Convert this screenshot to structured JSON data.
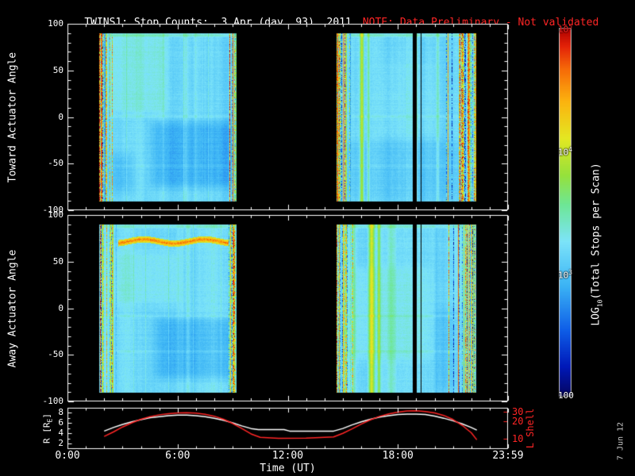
{
  "colors": {
    "background": "#000000",
    "foreground": "#ffffff",
    "accent_red": "#ff2525",
    "timestamp_gray": "#c8c8c8"
  },
  "chart_data": {
    "type": "spectrogram-heatmap+line",
    "title": "TWINS1: Stop Counts:  3 Apr (day  93), 2011",
    "note": "NOTE: Data Preliminary - Not validated",
    "timestamp": "7 Jun 12",
    "x_axis": {
      "label": "Time (UT)",
      "range_hours": [
        0,
        24
      ],
      "ticks": [
        {
          "hour": 0,
          "label": "0:00"
        },
        {
          "hour": 6,
          "label": "6:00"
        },
        {
          "hour": 12,
          "label": "12:00"
        },
        {
          "hour": 18,
          "label": "18:00"
        },
        {
          "hour": 24,
          "label": "23:59"
        }
      ]
    },
    "spectro_panels": [
      {
        "ylabel": "Toward Actuator Angle",
        "yticks": [
          100,
          50,
          0,
          -50,
          -100
        ],
        "yrange": [
          -100,
          100
        ],
        "patches": [
          {
            "t": [
              4.6,
              9.1
            ],
            "a": [
              -75,
              -5
            ],
            "d": -0.26
          },
          {
            "t": [
              1.8,
              5.4
            ],
            "a": [
              5,
              88
            ],
            "d": 0.14
          },
          {
            "t": [
              2.2,
              3.6
            ],
            "a": [
              -80,
              -40
            ],
            "d": -0.16
          },
          {
            "t": [
              14.8,
              21.8
            ],
            "a": [
              -88,
              -25
            ],
            "d": -0.1
          },
          {
            "t": [
              17.0,
              20.3
            ],
            "a": [
              -20,
              60
            ],
            "d": 0.06
          }
        ],
        "rows": [
          {
            "a": 88,
            "d": 0.26
          },
          {
            "a": 1,
            "d": 0.09
          },
          {
            "a": -52,
            "d": 0.07
          }
        ],
        "stripes": [
          {
            "t": 5.2,
            "w": 0.1,
            "d": 0.12
          },
          {
            "t": 6.45,
            "w": 0.2,
            "d": 0.22
          },
          {
            "t": 6.95,
            "w": 0.13,
            "d": 0.16
          },
          {
            "t": 16.02,
            "w": 0.16,
            "d": 0.85
          },
          {
            "t": 16.38,
            "w": 0.11,
            "d": 0.45
          },
          {
            "t": 20.15,
            "w": 0.12,
            "d": 0.3
          }
        ],
        "bands": []
      },
      {
        "ylabel": "Away Actuator Angle",
        "yticks": [
          100,
          50,
          0,
          -50,
          -100
        ],
        "yrange": [
          -100,
          100
        ],
        "patches": [
          {
            "t": [
              4.8,
              9.1
            ],
            "a": [
              -75,
              -10
            ],
            "d": -0.24
          },
          {
            "t": [
              2.0,
              6.2
            ],
            "a": [
              5,
              62
            ],
            "d": 0.12
          },
          {
            "t": [
              15.2,
              19.8
            ],
            "a": [
              -55,
              45
            ],
            "d": 0.1
          },
          {
            "t": [
              20.0,
              22.2
            ],
            "a": [
              -88,
              0
            ],
            "d": -0.12
          }
        ],
        "rows": [
          {
            "a": 88,
            "d": 0.22
          },
          {
            "a": -8,
            "d": 0.12
          },
          {
            "a": -46,
            "d": 0.09
          }
        ],
        "stripes": [
          {
            "t": 15.6,
            "w": 0.1,
            "d": 0.3
          },
          {
            "t": 6.55,
            "w": 0.16,
            "d": 0.2
          },
          {
            "t": 16.55,
            "w": 0.24,
            "d": 0.95
          },
          {
            "t": 16.95,
            "w": 0.13,
            "d": 0.55
          },
          {
            "t": 17.6,
            "w": 0.35,
            "d": 0.25
          }
        ],
        "bands": [
          {
            "t": [
              2.75,
              9.15
            ],
            "a": 72,
            "hw": 3.4,
            "lv": 4.6,
            "wavelen": 1.9,
            "wamp": 2.2
          }
        ]
      }
    ],
    "spectro": {
      "angle_extent": 90,
      "base": 3.18,
      "noise": 0.1,
      "segments": [
        {
          "t": [
            1.72,
            9.17
          ],
          "edge": [
            0.95,
            0.55
          ]
        },
        {
          "t": [
            14.65,
            22.25
          ],
          "edge": [
            1.05,
            1.7
          ]
        }
      ],
      "dropouts": [
        [
          18.9,
          0.18
        ],
        [
          19.25,
          0.07
        ]
      ]
    },
    "colorbar": {
      "label_pre": "LOG",
      "label_sub": "10",
      "label_post": "(Total Stops per Scan)",
      "log_range": [
        2,
        5
      ],
      "ticks": [
        {
          "base": "10",
          "exp": "5",
          "log": 5,
          "color": "#ff2525"
        },
        {
          "base": "10",
          "exp": "4",
          "log": 4,
          "color": "#ffffff"
        },
        {
          "base": "10",
          "exp": "3",
          "log": 3,
          "color": "#ffffff"
        },
        {
          "base": "100",
          "exp": "",
          "log": 2,
          "color": "#ffffff"
        }
      ],
      "gradient": [
        {
          "v": 0.0,
          "c": "#050560"
        },
        {
          "v": 0.08,
          "c": "#0019b9"
        },
        {
          "v": 0.18,
          "c": "#0f5fe8"
        },
        {
          "v": 0.3,
          "c": "#3cb4f5"
        },
        {
          "v": 0.42,
          "c": "#7de4fa"
        },
        {
          "v": 0.52,
          "c": "#6ee796"
        },
        {
          "v": 0.6,
          "c": "#96e13c"
        },
        {
          "v": 0.7,
          "c": "#e4e823"
        },
        {
          "v": 0.8,
          "c": "#fcb40f"
        },
        {
          "v": 0.89,
          "c": "#f66908"
        },
        {
          "v": 0.95,
          "c": "#e42308"
        },
        {
          "v": 1.0,
          "c": "#af0000"
        }
      ]
    },
    "orbit_panel": {
      "left_label_pre": "R [R",
      "left_label_sub": "E",
      "left_label_post": "]",
      "left_ticks": [
        8,
        6,
        4,
        2
      ],
      "right_label": "L Shell",
      "right_ticks": [
        30,
        20,
        10
      ],
      "r_series": [
        [
          2.0,
          4.4
        ],
        [
          2.5,
          5.1
        ],
        [
          3.0,
          5.7
        ],
        [
          3.5,
          6.2
        ],
        [
          4.0,
          6.6
        ],
        [
          4.5,
          7.0
        ],
        [
          5.0,
          7.2
        ],
        [
          5.5,
          7.4
        ],
        [
          6.0,
          7.5
        ],
        [
          6.5,
          7.5
        ],
        [
          7.0,
          7.4
        ],
        [
          7.5,
          7.2
        ],
        [
          8.0,
          6.9
        ],
        [
          8.5,
          6.5
        ],
        [
          9.0,
          6.0
        ],
        [
          9.5,
          5.4
        ],
        [
          10.0,
          4.9
        ],
        [
          10.4,
          4.7
        ],
        [
          11.8,
          4.7
        ],
        [
          12.1,
          4.4
        ],
        [
          14.5,
          4.4
        ],
        [
          15.0,
          4.9
        ],
        [
          15.5,
          5.6
        ],
        [
          16.0,
          6.2
        ],
        [
          16.5,
          6.7
        ],
        [
          17.0,
          7.1
        ],
        [
          17.5,
          7.4
        ],
        [
          18.0,
          7.6
        ],
        [
          18.5,
          7.7
        ],
        [
          19.0,
          7.7
        ],
        [
          19.5,
          7.6
        ],
        [
          20.0,
          7.3
        ],
        [
          20.5,
          6.9
        ],
        [
          21.0,
          6.4
        ],
        [
          21.5,
          5.8
        ],
        [
          22.0,
          5.1
        ],
        [
          22.3,
          4.6
        ]
      ],
      "l_series": [
        [
          2.0,
          10.8
        ],
        [
          2.5,
          13
        ],
        [
          3.0,
          16
        ],
        [
          3.5,
          19
        ],
        [
          4.0,
          22
        ],
        [
          4.5,
          24.5
        ],
        [
          5.0,
          26.5
        ],
        [
          5.5,
          27.8
        ],
        [
          6.0,
          28.6
        ],
        [
          6.5,
          29
        ],
        [
          7.0,
          28.4
        ],
        [
          7.5,
          27
        ],
        [
          8.0,
          25
        ],
        [
          8.5,
          22
        ],
        [
          9.0,
          18.5
        ],
        [
          9.5,
          15
        ],
        [
          10.0,
          12
        ],
        [
          10.5,
          10.4
        ],
        [
          11.5,
          10
        ],
        [
          13.0,
          10.1
        ],
        [
          14.5,
          10.6
        ],
        [
          15.0,
          12.3
        ],
        [
          15.5,
          14.8
        ],
        [
          16.0,
          18
        ],
        [
          16.5,
          21.5
        ],
        [
          17.0,
          24.8
        ],
        [
          17.5,
          27.5
        ],
        [
          18.0,
          29.5
        ],
        [
          18.5,
          31
        ],
        [
          19.0,
          31.4
        ],
        [
          19.5,
          30.4
        ],
        [
          20.0,
          28.6
        ],
        [
          20.5,
          25.8
        ],
        [
          21.0,
          21.8
        ],
        [
          21.5,
          17.2
        ],
        [
          22.0,
          12.6
        ],
        [
          22.3,
          9.4
        ]
      ]
    }
  }
}
